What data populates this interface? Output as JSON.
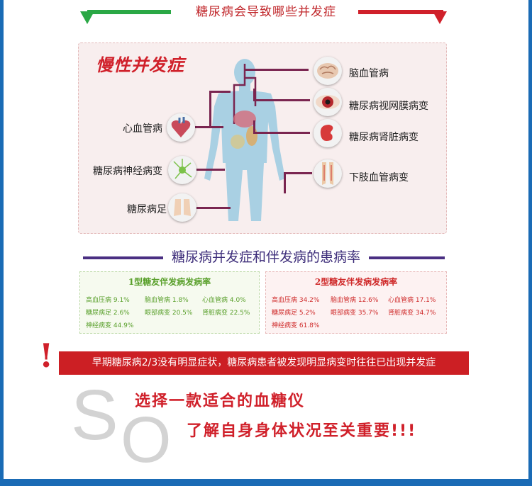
{
  "header": {
    "title": "糖尿病会导致哪些并发症"
  },
  "chronic": {
    "title": "慢性并发症",
    "right_items": [
      {
        "label": "脑血管病",
        "icon": "brain-icon"
      },
      {
        "label": "糖尿病视网膜病变",
        "icon": "eye-icon"
      },
      {
        "label": "糖尿病肾脏病变",
        "icon": "kidney-icon"
      },
      {
        "label": "下肢血管病变",
        "icon": "legs-icon"
      }
    ],
    "left_items": [
      {
        "label": "心血管病",
        "icon": "heart-icon"
      },
      {
        "label": "糖尿病神经病变",
        "icon": "neuron-icon"
      },
      {
        "label": "糖尿病足",
        "icon": "feet-icon"
      }
    ],
    "body_icon": "human-body-icon"
  },
  "rates": {
    "title": "糖尿病并发症和伴发病的患病率",
    "type1": {
      "title": "1型糖友伴发病发病率",
      "rows": [
        [
          "高血压病 9.1%",
          "脑血管病 1.8%",
          "心血管病 4.0%"
        ],
        [
          "糖尿病足 2.6%",
          "眼部病变 20.5%",
          "肾脏病变 22.5%"
        ],
        [
          "神经病变 44.9%"
        ]
      ]
    },
    "type2": {
      "title": "2型糖友伴发病发病率",
      "rows": [
        [
          "高血压病 34.2%",
          "脑血管病 12.6%",
          "心血管病 17.1%"
        ],
        [
          "糖尿病足 5.2%",
          "眼部病变 35.7%",
          "肾脏病变 34.7%"
        ],
        [
          "神经病变 61.8%"
        ]
      ]
    }
  },
  "banner": {
    "text": "早期糖尿病2/3没有明显症状，糖尿病患者被发现明显病变时往往已出现并发症",
    "mark": "!"
  },
  "footer": {
    "so": "SO",
    "line1": "选择一款适合的血糖仪",
    "line2": "了解自身身体状况至关重要!!!"
  },
  "colors": {
    "red": "#d0202a",
    "green": "#2aa845",
    "purple": "#4a2f82",
    "frame": "#1a6bb5"
  }
}
